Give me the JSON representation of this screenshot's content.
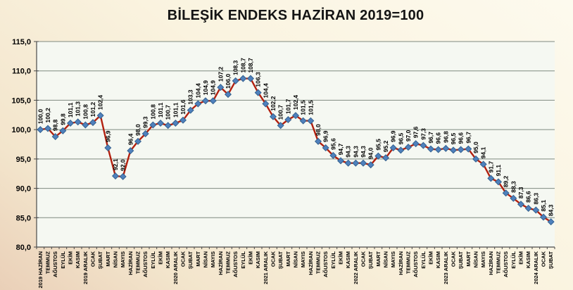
{
  "chart_data": {
    "type": "line",
    "title": "BİLEŞİK ENDEKS HAZİRAN 2019=100",
    "series_name": "BİLEŞİK ENDEKS",
    "x": [
      "2019 HAZİRAN",
      "TEMMUZ",
      "AĞUSTOS",
      "EYLÜL",
      "EKİM",
      "KASIM",
      "2019 ARALIK",
      "OCAK",
      "ŞUBAT",
      "MART",
      "NİSAN",
      "MAYIS",
      "HAZİRAN",
      "TEMMUZ",
      "AĞUSTOS",
      "EYLÜL",
      "EKİM",
      "KASIM",
      "2020 ARALIK",
      "OCAK",
      "ŞUBAT",
      "MART",
      "NİSAN",
      "MAYIS",
      "HAZİRAN",
      "TEMMUZ",
      "AĞUSTOS",
      "EYLÜL",
      "EKİM",
      "KASIM",
      "2021 ARALIK",
      "OCAK",
      "ŞUBAT",
      "MART",
      "NİSAN",
      "MAYIS",
      "HAZİRAN",
      "TEMMUZ",
      "AĞUSTOS",
      "EYLÜL",
      "EKİM",
      "KASIM",
      "2022 ARALIK",
      "OCAK",
      "ŞUBAT",
      "MART",
      "NİSAN",
      "MAYIS",
      "HAZİRAN",
      "TEMMUZ",
      "AĞUSTOS",
      "EYLÜL",
      "EKİM",
      "KASIM",
      "2023 ARALIK",
      "OCAK",
      "ŞUBAT",
      "MART",
      "NİSAN",
      "MAYIS",
      "HAZİRAN",
      "TEMMUZ",
      "AĞUSTOS",
      "EYLÜL",
      "EKİM",
      "KASIM",
      "2024 ARALIK",
      "OCAK",
      "ŞUBAT"
    ],
    "values": [
      100.0,
      100.2,
      98.8,
      99.8,
      101.1,
      101.3,
      100.8,
      101.2,
      102.4,
      96.9,
      92.1,
      92.0,
      96.4,
      98.0,
      99.3,
      100.8,
      101.1,
      100.7,
      101.1,
      101.6,
      103.3,
      104.4,
      104.9,
      104.9,
      107.2,
      106.0,
      108.3,
      108.7,
      108.7,
      106.3,
      104.4,
      102.2,
      100.7,
      101.7,
      102.4,
      101.5,
      101.5,
      98.0,
      96.9,
      95.6,
      94.7,
      94.3,
      94.3,
      94.3,
      94.0,
      95.5,
      95.2,
      96.9,
      96.5,
      97.0,
      97.6,
      97.3,
      96.7,
      96.6,
      96.8,
      96.5,
      96.6,
      96.7,
      95.0,
      94.1,
      91.7,
      91.1,
      89.2,
      88.3,
      87.3,
      86.6,
      86.3,
      85.1,
      84.3
    ],
    "ylim": [
      80,
      115
    ],
    "yticks": [
      80,
      85,
      90,
      95,
      100,
      105,
      110,
      115
    ],
    "ytick_labels": [
      "80,0",
      "85,0",
      "90,0",
      "95,0",
      "100,0",
      "105,0",
      "110,0",
      "115,0"
    ],
    "grid": true,
    "legend": "none",
    "x_label_rotation": 90,
    "data_label_rotation": 90,
    "data_labels_shown": true,
    "decimal_separator": ",",
    "colors": {
      "line": "#b2200f",
      "marker": "#4f81bd",
      "marker_border": "#35618f",
      "grid": "#7f8a80",
      "axis": "#4a4a4a",
      "text": "#000000",
      "plot_bg": "#f5f8f2"
    }
  }
}
